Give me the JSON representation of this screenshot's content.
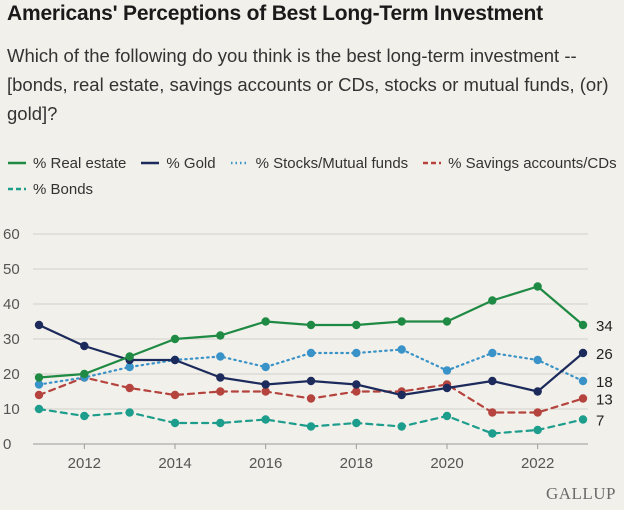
{
  "title": "Americans' Perceptions of Best Long-Term Investment",
  "subtitle": "Which of the following do you think is the best long-term investment -- [bonds, real estate, savings accounts or CDs, stocks or mutual funds, (or) gold]?",
  "brand": "GALLUP",
  "chart_data": {
    "type": "line",
    "x": [
      2011,
      2012,
      2013,
      2014,
      2015,
      2016,
      2017,
      2018,
      2019,
      2020,
      2021,
      2022,
      2023
    ],
    "x_ticks": [
      2012,
      2014,
      2016,
      2018,
      2020,
      2022
    ],
    "y_ticks": [
      0,
      10,
      20,
      30,
      40,
      50,
      60
    ],
    "ylim": [
      0,
      60
    ],
    "grid": "horizontal",
    "legend": "top",
    "series": [
      {
        "name": "% Real estate",
        "color": "#1f8a44",
        "dash": "solid",
        "values": [
          19,
          20,
          25,
          30,
          31,
          35,
          34,
          34,
          35,
          35,
          41,
          45,
          34
        ],
        "end_label": "34"
      },
      {
        "name": "% Gold",
        "color": "#1c2a5c",
        "dash": "solid",
        "values": [
          34,
          28,
          24,
          24,
          19,
          17,
          18,
          17,
          14,
          16,
          18,
          15,
          26
        ],
        "end_label": "26"
      },
      {
        "name": "% Stocks/Mutual funds",
        "color": "#3a93c8",
        "dash": "dotted",
        "values": [
          17,
          19,
          22,
          24,
          25,
          22,
          26,
          26,
          27,
          21,
          26,
          24,
          18
        ],
        "end_label": "18"
      },
      {
        "name": "% Savings accounts/CDs",
        "color": "#b5443f",
        "dash": "dashed",
        "values": [
          14,
          19,
          16,
          14,
          15,
          15,
          13,
          15,
          15,
          17,
          9,
          9,
          13
        ],
        "end_label": "13"
      },
      {
        "name": "% Bonds",
        "color": "#1d9d8c",
        "dash": "dashed",
        "values": [
          10,
          8,
          9,
          6,
          6,
          7,
          5,
          6,
          5,
          8,
          3,
          4,
          7
        ],
        "end_label": "7"
      }
    ]
  }
}
